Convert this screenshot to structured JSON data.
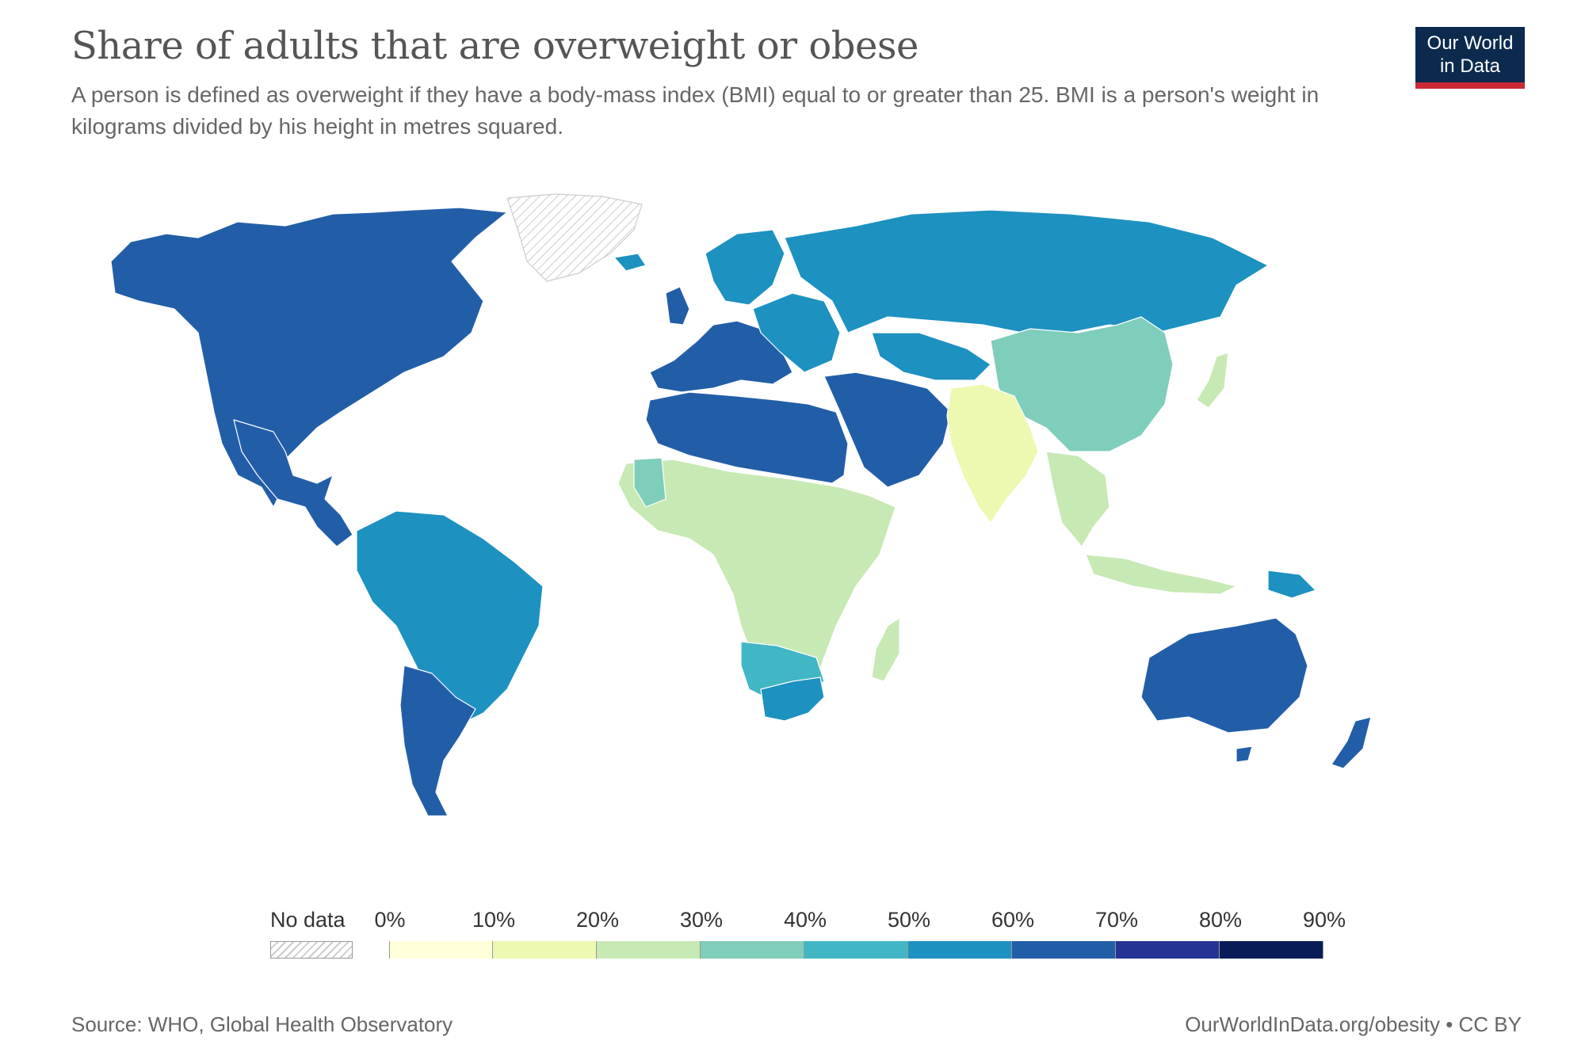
{
  "title": "Share of adults that are overweight or obese",
  "subtitle": "A person is defined as overweight if they have a body-mass index (BMI) equal to or greater than 25. BMI is a person's weight in kilograms divided by his height in metres squared.",
  "logo": {
    "line1": "Our World",
    "line2": "in Data",
    "bg_color": "#0c2a4e",
    "accent_color": "#cc2936"
  },
  "legend": {
    "no_data_label": "No data",
    "ticks": [
      "0%",
      "10%",
      "20%",
      "30%",
      "40%",
      "50%",
      "60%",
      "70%",
      "80%",
      "90%"
    ],
    "colors": [
      "#ffffd9",
      "#edf8b1",
      "#c7e9b4",
      "#7fcdbb",
      "#41b6c4",
      "#1d91c0",
      "#225ea8",
      "#253494",
      "#081d58"
    ]
  },
  "source": "Source: WHO, Global Health Observatory",
  "url_credit": "OurWorldInData.org/obesity • CC BY",
  "chart_data": {
    "type": "choropleth",
    "unit": "%",
    "bins": [
      0,
      10,
      20,
      30,
      40,
      50,
      60,
      70,
      80,
      90
    ],
    "regions": [
      {
        "name": "North America",
        "bin_color": "#225ea8"
      },
      {
        "name": "Central America",
        "bin_color": "#225ea8"
      },
      {
        "name": "South America",
        "bin_color": "#1d91c0"
      },
      {
        "name": "Southern Cone",
        "bin_color": "#225ea8"
      },
      {
        "name": "Greenland",
        "bin_color": "nodata"
      },
      {
        "name": "Iceland",
        "bin_color": "#1d91c0"
      },
      {
        "name": "Western Europe",
        "bin_color": "#225ea8"
      },
      {
        "name": "Scandinavia",
        "bin_color": "#1d91c0"
      },
      {
        "name": "Eastern Europe",
        "bin_color": "#1d91c0"
      },
      {
        "name": "Russia",
        "bin_color": "#1d91c0"
      },
      {
        "name": "North Africa",
        "bin_color": "#225ea8"
      },
      {
        "name": "Middle East",
        "bin_color": "#225ea8"
      },
      {
        "name": "Sub-Saharan Africa",
        "bin_color": "#c7e9b4"
      },
      {
        "name": "West Africa coast",
        "bin_color": "#7fcdbb"
      },
      {
        "name": "Southern Africa",
        "bin_color": "#41b6c4"
      },
      {
        "name": "South Africa",
        "bin_color": "#1d91c0"
      },
      {
        "name": "Madagascar",
        "bin_color": "#c7e9b4"
      },
      {
        "name": "Central Asia",
        "bin_color": "#1d91c0"
      },
      {
        "name": "China",
        "bin_color": "#7fcdbb"
      },
      {
        "name": "Japan",
        "bin_color": "#c7e9b4"
      },
      {
        "name": "India",
        "bin_color": "#edf8b1"
      },
      {
        "name": "South-East Asia",
        "bin_color": "#c7e9b4"
      },
      {
        "name": "Indonesia",
        "bin_color": "#c7e9b4"
      },
      {
        "name": "Papua New Guinea",
        "bin_color": "#1d91c0"
      },
      {
        "name": "Australia",
        "bin_color": "#225ea8"
      },
      {
        "name": "New Zealand",
        "bin_color": "#225ea8"
      }
    ]
  }
}
